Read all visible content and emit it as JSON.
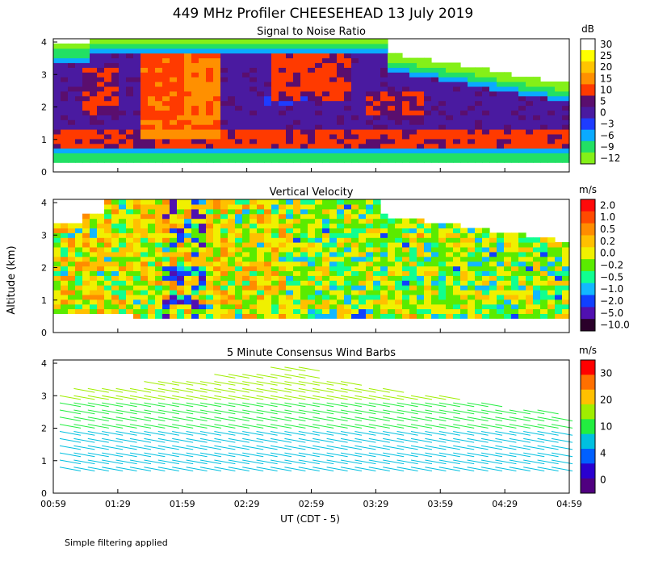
{
  "page": {
    "title": "449 MHz Profiler CHEESEHEAD 13 July 2019",
    "footnote": "Simple filtering applied"
  },
  "chart_data": [
    {
      "type": "heatmap",
      "title": "Signal to Noise Ratio",
      "ylabel": "Altitude (km)",
      "xlabel": "UT (CDT - 5)",
      "x_tick_labels": [
        "00:59",
        "01:29",
        "01:59",
        "02:29",
        "02:59",
        "03:29",
        "03:59",
        "04:29",
        "04:59"
      ],
      "y_ticks": [
        0,
        1,
        2,
        3,
        4
      ],
      "ylim": [
        0,
        4.1
      ],
      "colorbar": {
        "unit": "dB",
        "labels": [
          "30",
          "25",
          "20",
          "15",
          "10",
          "5",
          "0",
          "−3",
          "−6",
          "−9",
          "−12"
        ],
        "colors": [
          "#ffffff",
          "#ffff00",
          "#ffc400",
          "#ff9000",
          "#ff3a00",
          "#5a0e6e",
          "#4a1aa0",
          "#1e3cff",
          "#0aaaff",
          "#22e064",
          "#84f018"
        ]
      }
    },
    {
      "type": "heatmap",
      "title": "Vertical Velocity",
      "ylabel": "Altitude (km)",
      "x_tick_labels": [
        "00:59",
        "01:29",
        "01:59",
        "02:29",
        "02:59",
        "03:29",
        "03:59",
        "04:29",
        "04:59"
      ],
      "y_ticks": [
        0,
        1,
        2,
        3,
        4
      ],
      "ylim": [
        0,
        4.1
      ],
      "colorbar": {
        "unit": "m/s",
        "labels": [
          "2.0",
          "1.0",
          "0.5",
          "0.2",
          "0.0",
          "−0.2",
          "−0.5",
          "−1.0",
          "−2.0",
          "−5.0",
          "−10.0"
        ],
        "colors": [
          "#ff0a0a",
          "#ff4a00",
          "#ff8c00",
          "#ffc000",
          "#f0f000",
          "#5aeb00",
          "#10ff90",
          "#12b8ff",
          "#1040ff",
          "#5010b0",
          "#2a002a"
        ]
      }
    },
    {
      "type": "wind_barbs",
      "title": "5 Minute Consensus Wind Barbs",
      "ylabel": "Altitude (km)",
      "xlabel": "UT (CDT - 5)",
      "x_tick_labels": [
        "00:59",
        "01:29",
        "01:59",
        "02:29",
        "02:59",
        "03:29",
        "03:59",
        "04:29",
        "04:59"
      ],
      "y_ticks": [
        0,
        1,
        2,
        3,
        4
      ],
      "ylim": [
        0,
        4.1
      ],
      "colorbar": {
        "unit": "m/s",
        "labels": [
          "30",
          "20",
          "10",
          "4",
          "0"
        ],
        "colors": [
          "#ff0000",
          "#ff7000",
          "#ffc000",
          "#a0ee00",
          "#22ee40",
          "#00c0e0",
          "#0060ff",
          "#2a00d0",
          "#500080"
        ]
      }
    }
  ]
}
